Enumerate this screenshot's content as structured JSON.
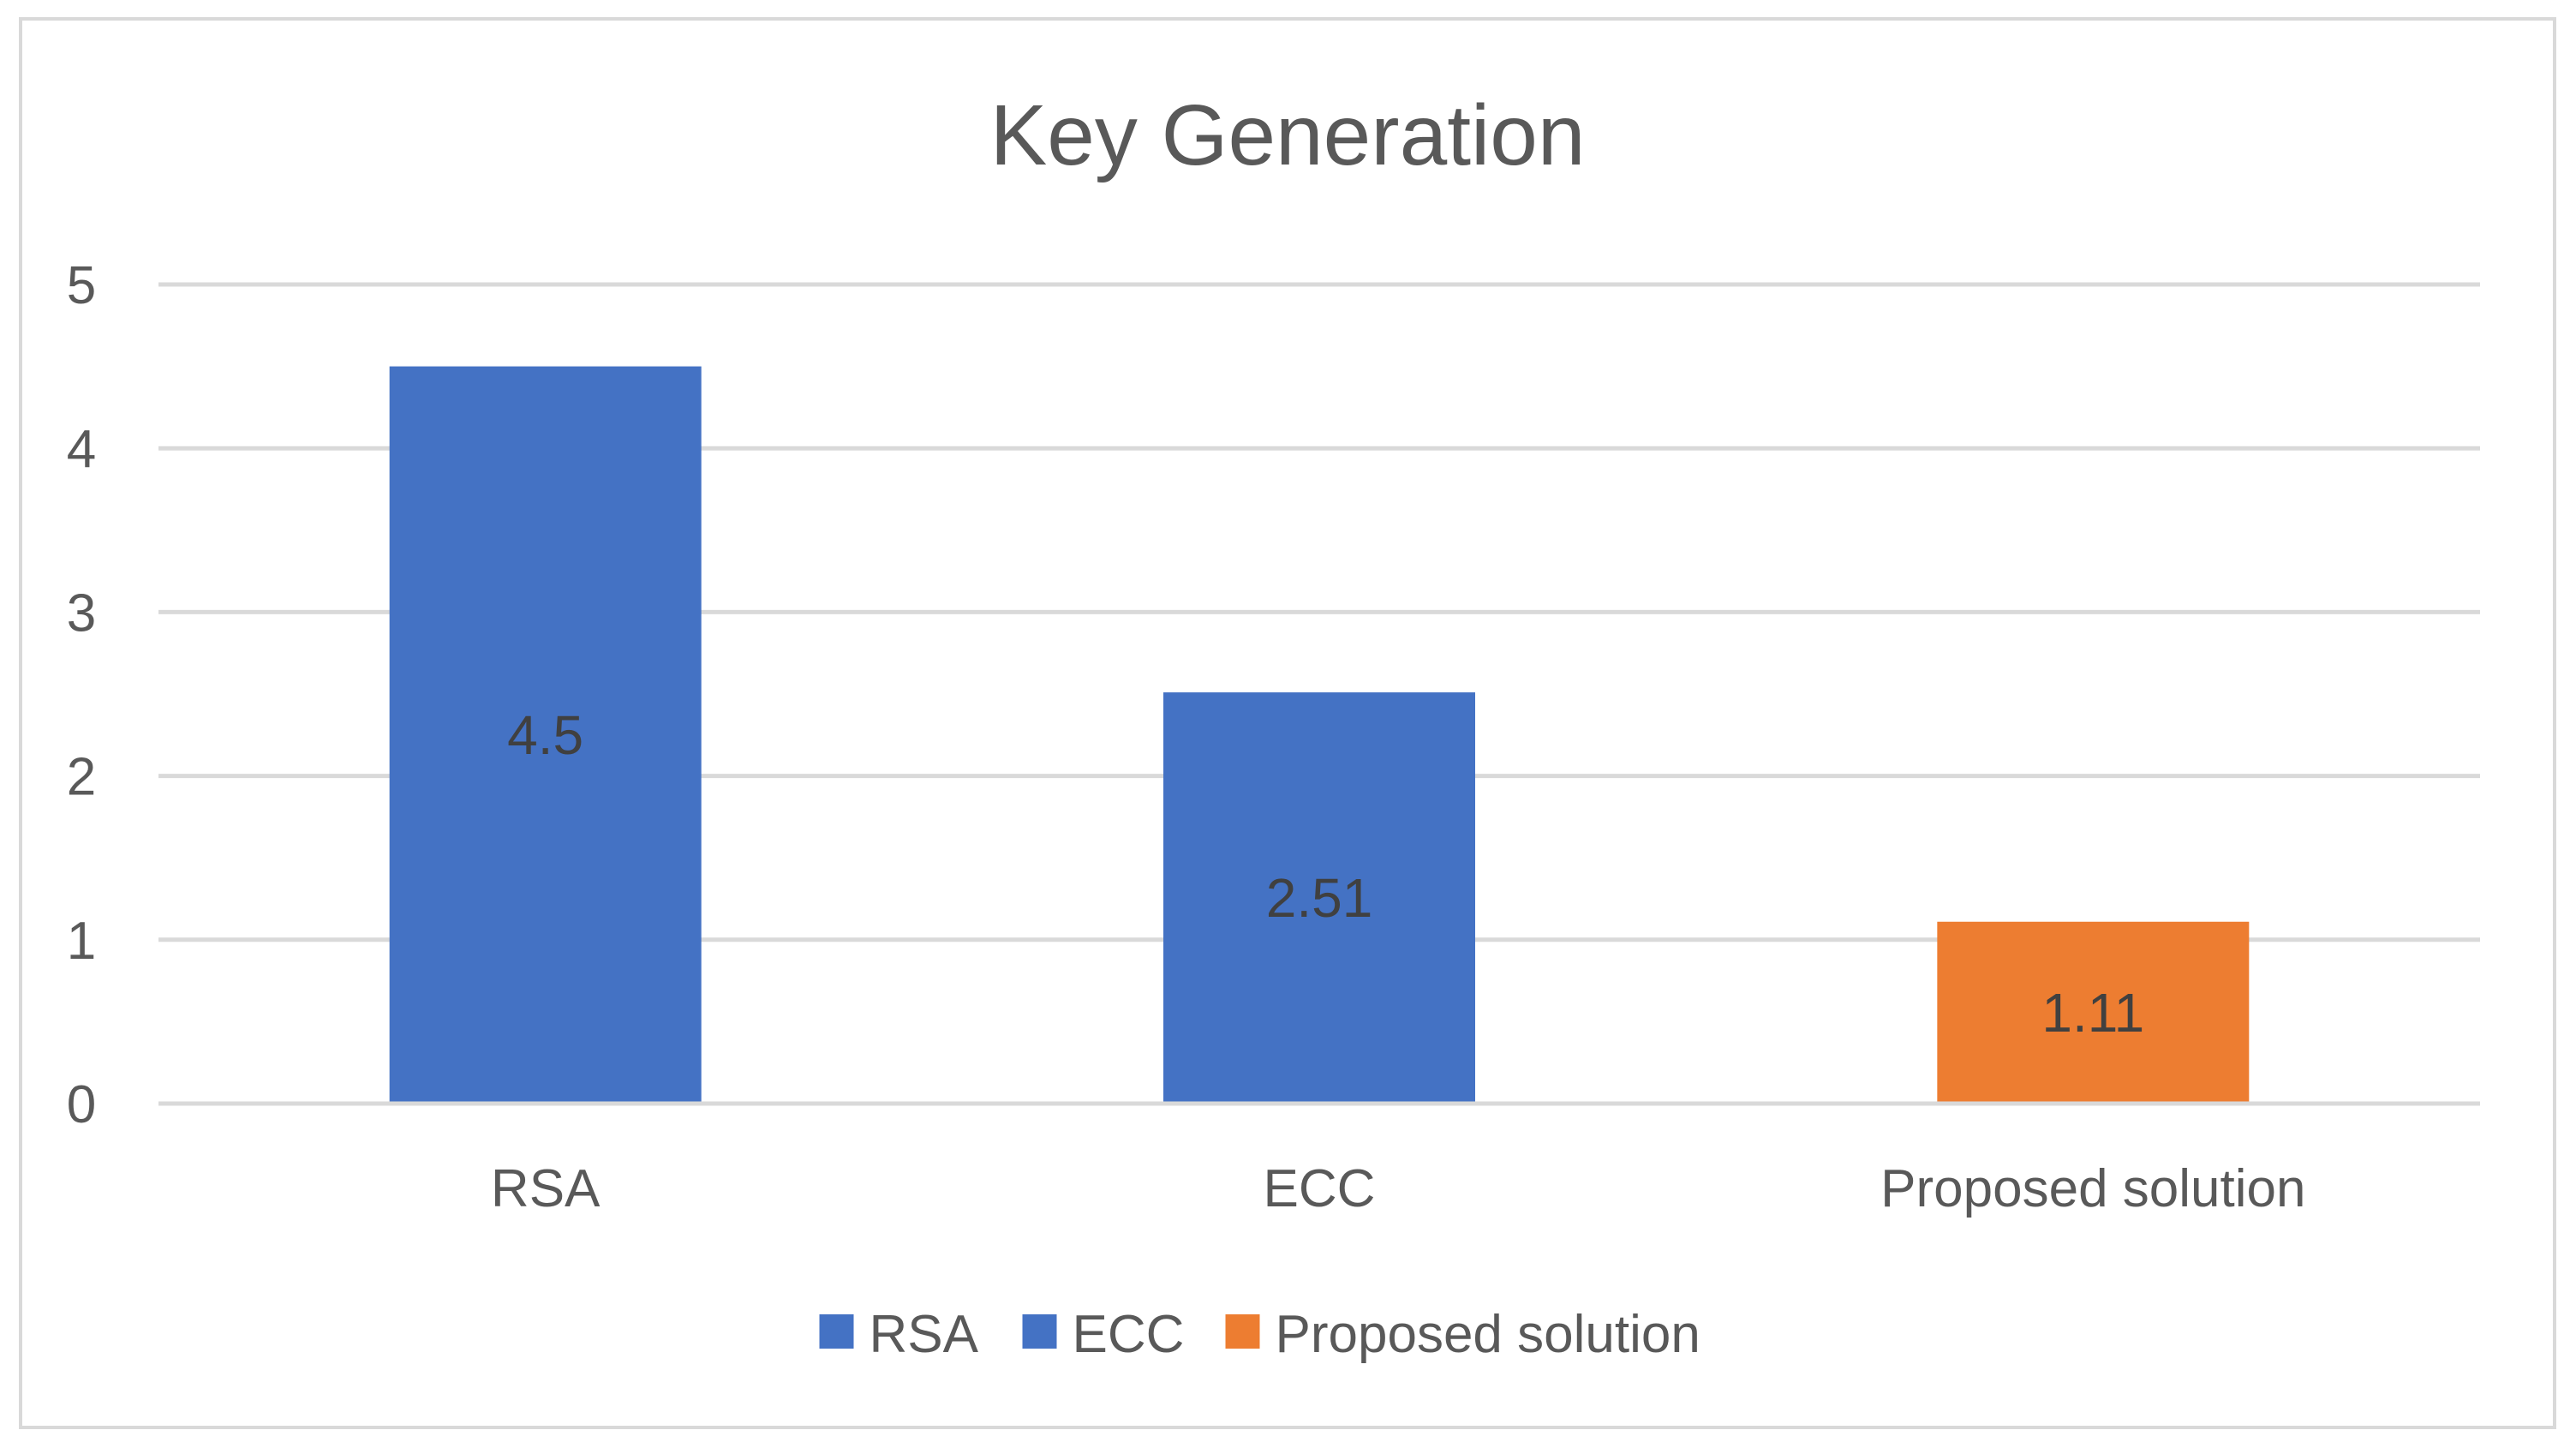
{
  "chart_data": {
    "type": "bar",
    "title": "Key Generation",
    "categories": [
      "RSA",
      "ECC",
      "Proposed solution"
    ],
    "values": [
      4.5,
      2.51,
      1.11
    ],
    "data_labels": [
      "4.5",
      "2.51",
      "1.11"
    ],
    "series": [
      {
        "name": "RSA",
        "values": [
          4.5,
          null,
          null
        ],
        "color": "#4472c4"
      },
      {
        "name": "ECC",
        "values": [
          null,
          2.51,
          null
        ],
        "color": "#4472c4"
      },
      {
        "name": "Proposed solution",
        "values": [
          null,
          null,
          1.11
        ],
        "color": "#ed7d31"
      }
    ],
    "ylim": [
      0,
      5
    ],
    "yticks": [
      "0",
      "1",
      "2",
      "3",
      "4",
      "5"
    ],
    "xlabel": "",
    "ylabel": "",
    "grid": true,
    "legend": "bottom-center"
  }
}
